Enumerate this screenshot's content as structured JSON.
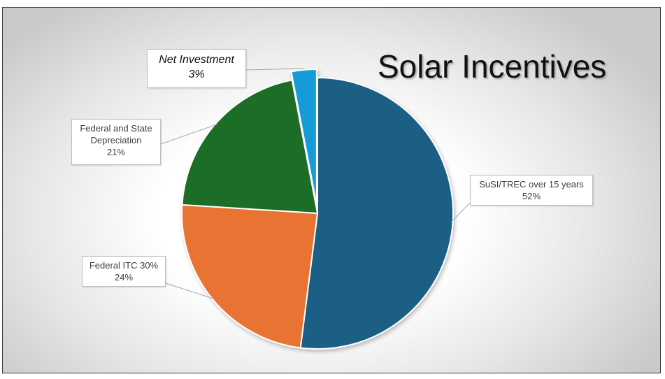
{
  "chart_data": {
    "type": "pie",
    "title": "Solar Incentives",
    "slices": [
      {
        "label": "SuSI/TREC over 15 years",
        "percent_label": "52%",
        "value": 52,
        "color": "#1a5e85"
      },
      {
        "label": "Federal ITC 30%",
        "percent_label": "24%",
        "value": 24,
        "color": "#e87331"
      },
      {
        "label": "Federal and State Depreciation",
        "percent_label": "21%",
        "value": 21,
        "color": "#1f6e26"
      },
      {
        "label": "Net Investment",
        "percent_label": "3%",
        "value": 3,
        "color": "#189bd9"
      }
    ]
  }
}
